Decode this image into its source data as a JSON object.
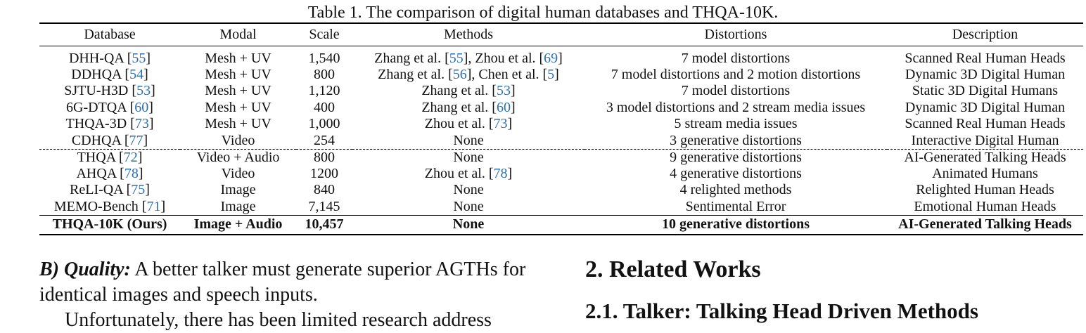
{
  "caption": "Table 1. The comparison of digital human databases and THQA-10K.",
  "table": {
    "headers": [
      "Database",
      "Modal",
      "Scale",
      "Methods",
      "Distortions",
      "Description"
    ],
    "rows": [
      {
        "db": "DHH-QA",
        "db_ref": "55",
        "modal": "Mesh + UV",
        "scale": "1,540",
        "m_a": "Zhang et al. [",
        "m_a_ref": "55",
        "m_b": "], Zhou et al. [",
        "m_b_ref": "69",
        "m_c": "]",
        "dist": "7 model distortions",
        "desc": "Scanned Real Human Heads"
      },
      {
        "db": "DDHQA",
        "db_ref": "54",
        "modal": "Mesh + UV",
        "scale": "800",
        "m_a": "Zhang et al. [",
        "m_a_ref": "56",
        "m_b": "], Chen et al. [",
        "m_b_ref": "5",
        "m_c": "]",
        "dist": "7 model distortions and 2 motion distortions",
        "desc": "Dynamic 3D Digital Human"
      },
      {
        "db": "SJTU-H3D",
        "db_ref": "53",
        "modal": "Mesh + UV",
        "scale": "1,120",
        "m_a": "Zhang et al. [",
        "m_a_ref": "53",
        "m_b": "]",
        "dist": "7 model distortions",
        "desc": "Static 3D Digital Humans"
      },
      {
        "db": "6G-DTQA",
        "db_ref": "60",
        "modal": "Mesh + UV",
        "scale": "400",
        "m_a": "Zhang et al. [",
        "m_a_ref": "60",
        "m_b": "]",
        "dist": "3 model distortions and 2 stream media issues",
        "desc": "Dynamic 3D Digital Human"
      },
      {
        "db": "THQA-3D",
        "db_ref": "73",
        "modal": "Mesh + UV",
        "scale": "1,000",
        "m_a": "Zhou et al. [",
        "m_a_ref": "73",
        "m_b": "]",
        "dist": "5 stream media issues",
        "desc": "Scanned Real Human Heads"
      },
      {
        "db": "CDHQA",
        "db_ref": "77",
        "modal": "Video",
        "scale": "254",
        "m_a": "None",
        "dist": "3 generative distortions",
        "desc": "Interactive Digital Human"
      },
      {
        "db": "THQA",
        "db_ref": "72",
        "modal": "Video + Audio",
        "scale": "800",
        "m_a": "None",
        "dist": "9 generative distortions",
        "desc": "AI-Generated Talking Heads"
      },
      {
        "db": "AHQA",
        "db_ref": "78",
        "modal": "Video",
        "scale": "1200",
        "m_a": "Zhou et al. [",
        "m_a_ref": "78",
        "m_b": "]",
        "dist": "4 generative distortions",
        "desc": "Animated Humans"
      },
      {
        "db": "ReLI-QA",
        "db_ref": "75",
        "modal": "Image",
        "scale": "840",
        "m_a": "None",
        "dist": "4 relighted methods",
        "desc": "Relighted Human Heads"
      },
      {
        "db": "MEMO-Bench",
        "db_ref": "71",
        "modal": "Image",
        "scale": "7,145",
        "m_a": "None",
        "dist": "Sentimental Error",
        "desc": "Emotional Human Heads"
      }
    ],
    "final": {
      "db": "THQA-10K (Ours)",
      "modal": "Image + Audio",
      "scale": "10,457",
      "methods": "None",
      "dist": "10 generative distortions",
      "desc": "AI-Generated Talking Heads"
    }
  },
  "left": {
    "lead": "B) Quality:",
    "p1": "A better talker must generate superior AGTHs for identical images and speech inputs.",
    "p2": "Unfortunately, there has been limited research address"
  },
  "right": {
    "h2": "2. Related Works",
    "h3": "2.1. Talker: Talking Head Driven Methods"
  },
  "colors": {
    "cite": "#2a6fb5"
  }
}
